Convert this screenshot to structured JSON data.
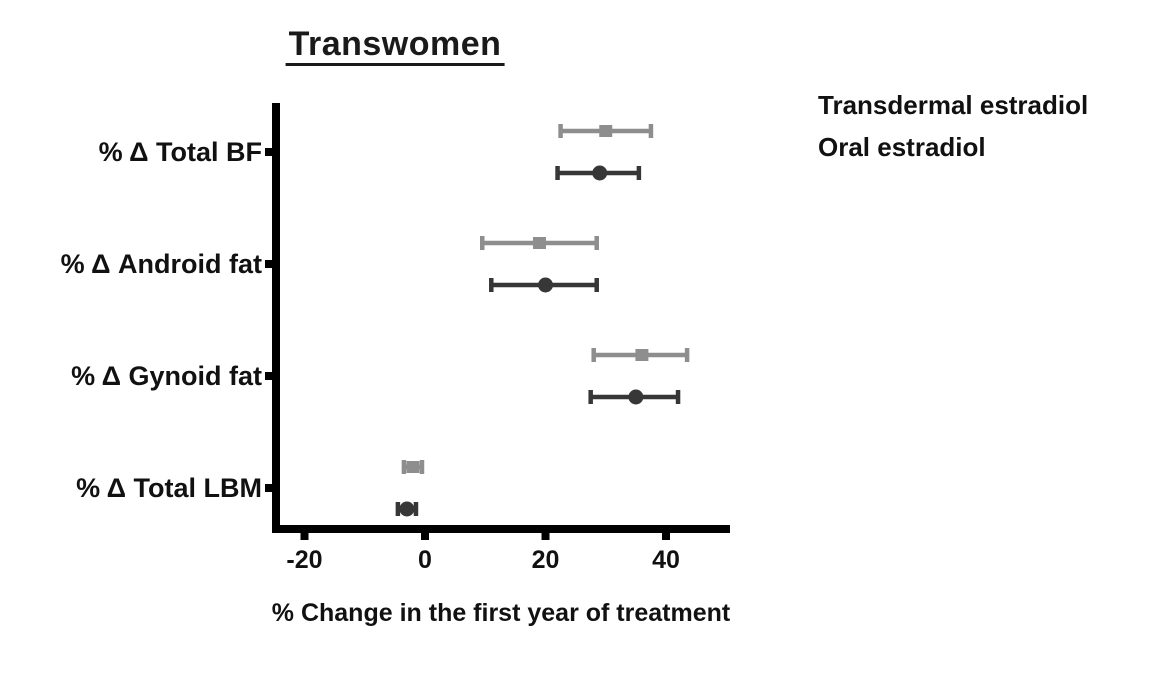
{
  "chart_data": {
    "type": "scatter",
    "variant": "forest-plot-horizontal-error-bars",
    "title": "Transwomen",
    "xlabel": "% Change in the first year of treatment",
    "ylabel": "",
    "categories": [
      "% Δ Total BF",
      "% Δ Android fat",
      "% Δ Gynoid fat",
      "% Δ Total LBM"
    ],
    "x_axis": {
      "ticks": [
        -20,
        0,
        20,
        40
      ],
      "tick_labels": [
        "-20",
        "0",
        "20",
        "40"
      ],
      "min": -25.5,
      "max": 50.5
    },
    "grid": "off",
    "legend_position": "upper-right-outside",
    "series": [
      {
        "name": "Transdermal estradiol",
        "marker": "circle",
        "color": "#373737",
        "values": [
          29,
          20,
          35,
          -3
        ],
        "ci_low": [
          22,
          11,
          27.5,
          -4.5
        ],
        "ci_high": [
          35.5,
          28.5,
          42,
          -1.5
        ]
      },
      {
        "name": "Oral estradiol",
        "marker": "square",
        "color": "#8e8e8e",
        "values": [
          30,
          19,
          36,
          -2
        ],
        "ci_low": [
          22.5,
          9.5,
          28,
          -3.5
        ],
        "ci_high": [
          37.5,
          28.5,
          43.5,
          -0.5
        ]
      }
    ],
    "axis_color": "#000000",
    "background_color": "#ffffff"
  }
}
